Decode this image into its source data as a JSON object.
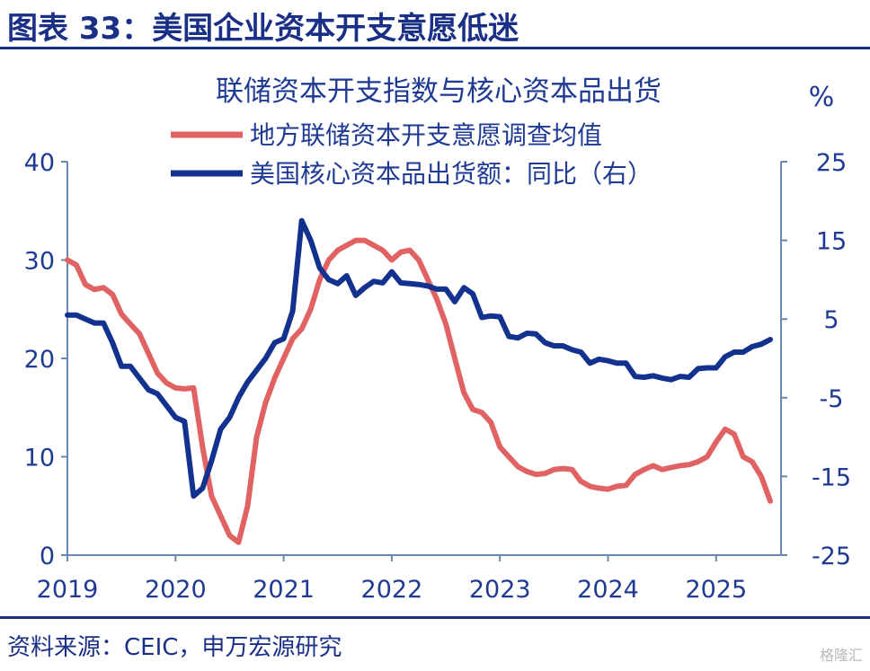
{
  "figure_title": "图表 33：美国企业资本开支意愿低迷",
  "source": "资料来源：CEIC，申万宏源研究",
  "watermark": "格隆汇",
  "chart_data": {
    "type": "line",
    "title": "联储资本开支指数与核心资本品出货",
    "right_unit": "%",
    "x_ticks": [
      "2019",
      "2020",
      "2021",
      "2022",
      "2023",
      "2024",
      "2025"
    ],
    "xlim": [
      2019.0,
      2025.6
    ],
    "left_axis": {
      "ylim": [
        0,
        40
      ],
      "ticks": [
        "0",
        "10",
        "20",
        "30",
        "40"
      ]
    },
    "right_axis": {
      "ylim": [
        -25,
        25
      ],
      "ticks": [
        "-25",
        "-15",
        "-5",
        "5",
        "15",
        "25"
      ]
    },
    "colors": {
      "series_left": "#e06262",
      "series_right": "#13318e",
      "axis": "#6b87b4",
      "text": "#1f3a93"
    },
    "series": [
      {
        "name": "地方联储资本开支意愿调查均值",
        "axis": "left",
        "x": [
          2019.0,
          2019.083,
          2019.167,
          2019.25,
          2019.333,
          2019.417,
          2019.5,
          2019.583,
          2019.667,
          2019.75,
          2019.833,
          2019.917,
          2020.0,
          2020.083,
          2020.167,
          2020.25,
          2020.333,
          2020.417,
          2020.5,
          2020.583,
          2020.667,
          2020.75,
          2020.833,
          2020.917,
          2021.0,
          2021.083,
          2021.167,
          2021.25,
          2021.333,
          2021.417,
          2021.5,
          2021.583,
          2021.667,
          2021.75,
          2021.833,
          2021.917,
          2022.0,
          2022.083,
          2022.167,
          2022.25,
          2022.333,
          2022.417,
          2022.5,
          2022.583,
          2022.667,
          2022.75,
          2022.833,
          2022.917,
          2023.0,
          2023.083,
          2023.167,
          2023.25,
          2023.333,
          2023.417,
          2023.5,
          2023.583,
          2023.667,
          2023.75,
          2023.833,
          2023.917,
          2024.0,
          2024.083,
          2024.167,
          2024.25,
          2024.333,
          2024.417,
          2024.5,
          2024.583,
          2024.667,
          2024.75,
          2024.833,
          2024.917,
          2025.0,
          2025.083,
          2025.167,
          2025.25,
          2025.333,
          2025.417,
          2025.5
        ],
        "values": [
          30,
          29.5,
          27.5,
          27,
          27.2,
          26.5,
          24.5,
          23.5,
          22.5,
          20.5,
          18.5,
          17.5,
          17,
          16.9,
          17,
          11,
          6,
          4,
          2,
          1.3,
          5,
          12,
          15.5,
          18,
          20,
          22,
          23,
          25,
          28,
          30,
          31,
          31.5,
          32,
          32,
          31.5,
          31,
          30,
          30.8,
          31,
          30,
          28,
          26,
          23.5,
          20,
          16.5,
          14.8,
          14.5,
          13.5,
          11,
          10,
          9,
          8.5,
          8.2,
          8.3,
          8.7,
          8.8,
          8.7,
          7.5,
          7,
          6.8,
          6.7,
          7,
          7.1,
          8.2,
          8.7,
          9.1,
          8.7,
          8.9,
          9.1,
          9.2,
          9.5,
          10,
          11.5,
          12.8,
          12.3,
          10,
          9.5,
          8,
          5.5
        ]
      },
      {
        "name": "美国核心资本品出货额：同比（右）",
        "axis": "right",
        "x": [
          2019.0,
          2019.083,
          2019.167,
          2019.25,
          2019.333,
          2019.417,
          2019.5,
          2019.583,
          2019.667,
          2019.75,
          2019.833,
          2019.917,
          2020.0,
          2020.083,
          2020.167,
          2020.25,
          2020.333,
          2020.417,
          2020.5,
          2020.583,
          2020.667,
          2020.75,
          2020.833,
          2020.917,
          2021.0,
          2021.083,
          2021.167,
          2021.25,
          2021.333,
          2021.417,
          2021.5,
          2021.583,
          2021.667,
          2021.75,
          2021.833,
          2021.917,
          2022.0,
          2022.083,
          2022.167,
          2022.25,
          2022.333,
          2022.417,
          2022.5,
          2022.583,
          2022.667,
          2022.75,
          2022.833,
          2022.917,
          2023.0,
          2023.083,
          2023.167,
          2023.25,
          2023.333,
          2023.417,
          2023.5,
          2023.583,
          2023.667,
          2023.75,
          2023.833,
          2023.917,
          2024.0,
          2024.083,
          2024.167,
          2024.25,
          2024.333,
          2024.417,
          2024.5,
          2024.583,
          2024.667,
          2024.75,
          2024.833,
          2024.917,
          2025.0,
          2025.083,
          2025.167,
          2025.25,
          2025.333,
          2025.417,
          2025.5
        ],
        "values": [
          5.5,
          5.5,
          5,
          4.5,
          4.5,
          2,
          -1,
          -1,
          -2.5,
          -4,
          -4.5,
          -6,
          -7.5,
          -8,
          -17.5,
          -16.5,
          -13,
          -9,
          -7.5,
          -5,
          -3,
          -1.5,
          0,
          2,
          2.5,
          6,
          17.5,
          15,
          11.5,
          10,
          9.5,
          10.5,
          8,
          9,
          9.8,
          9.6,
          11,
          9.6,
          9.5,
          9.4,
          9.2,
          8.8,
          8.8,
          7.2,
          9,
          8.2,
          5.2,
          5.4,
          5.3,
          2.8,
          2.6,
          3.2,
          3.1,
          2,
          1.6,
          1.6,
          1.1,
          0.8,
          -0.6,
          -0.1,
          -0.3,
          -0.6,
          -0.6,
          -2.3,
          -2.4,
          -2.2,
          -2.5,
          -2.7,
          -2.3,
          -2.4,
          -1.3,
          -1.2,
          -1.2,
          0.2,
          0.8,
          0.8,
          1.5,
          1.8,
          2.4
        ]
      }
    ]
  }
}
